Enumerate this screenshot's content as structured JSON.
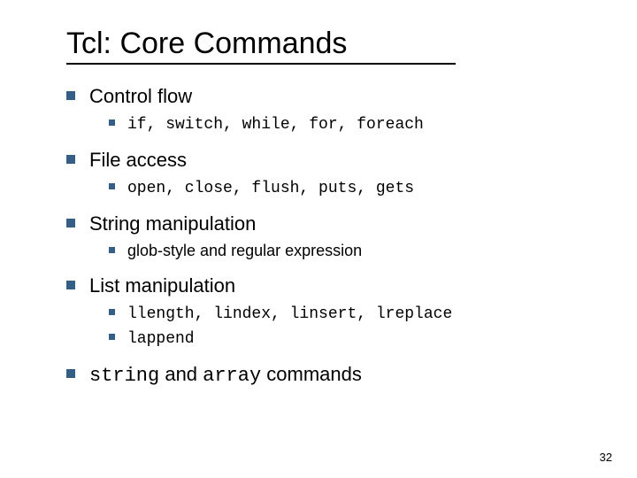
{
  "title": "Tcl: Core Commands",
  "page_number": "32",
  "colors": {
    "bullet": "#355e87",
    "text": "#000000",
    "background": "#ffffff",
    "underline": "#000000"
  },
  "typography": {
    "title_fontsize": 34,
    "l1_fontsize": 22,
    "l2_fontsize": 18,
    "body_font": "Verdana",
    "mono_font": "Courier New"
  },
  "sections": {
    "s0": {
      "heading": "Control flow",
      "items": {
        "i0": {
          "mono": "if, switch, while, for, foreach",
          "plain": ""
        }
      }
    },
    "s1": {
      "heading": "File access",
      "items": {
        "i0": {
          "mono": "open, close, flush, puts, gets",
          "plain": ""
        }
      }
    },
    "s2": {
      "heading": "String manipulation",
      "items": {
        "i0": {
          "mono": "",
          "plain": "glob-style and regular expression"
        }
      }
    },
    "s3": {
      "heading": "List manipulation",
      "items": {
        "i0": {
          "mono": "llength, lindex, linsert, lreplace",
          "plain": ""
        },
        "i1": {
          "mono": "lappend",
          "plain": ""
        }
      }
    },
    "s4": {
      "mono_a": "string",
      "plain_a": " and ",
      "mono_b": "array",
      "plain_b": " commands"
    }
  }
}
